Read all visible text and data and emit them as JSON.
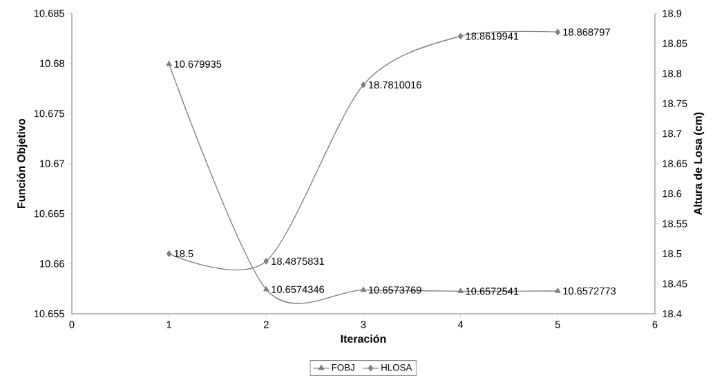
{
  "chart_data": {
    "type": "line",
    "xlabel": "Iteración",
    "ylabel": "Función Objetivo",
    "y2label": "Altura de Losa (cm)",
    "x": [
      1,
      2,
      3,
      4,
      5
    ],
    "series": [
      {
        "name": "FOBJ",
        "color": "#7f7f7f",
        "marker": "triangle",
        "values": [
          10.679935,
          10.6574346,
          10.6573769,
          10.6572541,
          10.6572773
        ]
      },
      {
        "name": "HLOSA",
        "color": "#7f7f7f",
        "marker": "diamond",
        "axis": "y2",
        "values": [
          18.5,
          18.4875831,
          18.7810016,
          18.8619941,
          18.868797
        ]
      }
    ],
    "xlim": [
      0,
      6
    ],
    "xticks": [
      0,
      1,
      2,
      3,
      4,
      5,
      6
    ],
    "ylim": [
      10.655,
      10.685
    ],
    "yticks": [
      10.655,
      10.66,
      10.665,
      10.67,
      10.675,
      10.68,
      10.685
    ],
    "y2lim": [
      18.4,
      18.9
    ],
    "y2ticks": [
      18.4,
      18.45,
      18.5,
      18.55,
      18.6,
      18.65,
      18.7,
      18.75,
      18.8,
      18.85,
      18.9
    ],
    "data_labels": true,
    "legend": "bottom"
  }
}
